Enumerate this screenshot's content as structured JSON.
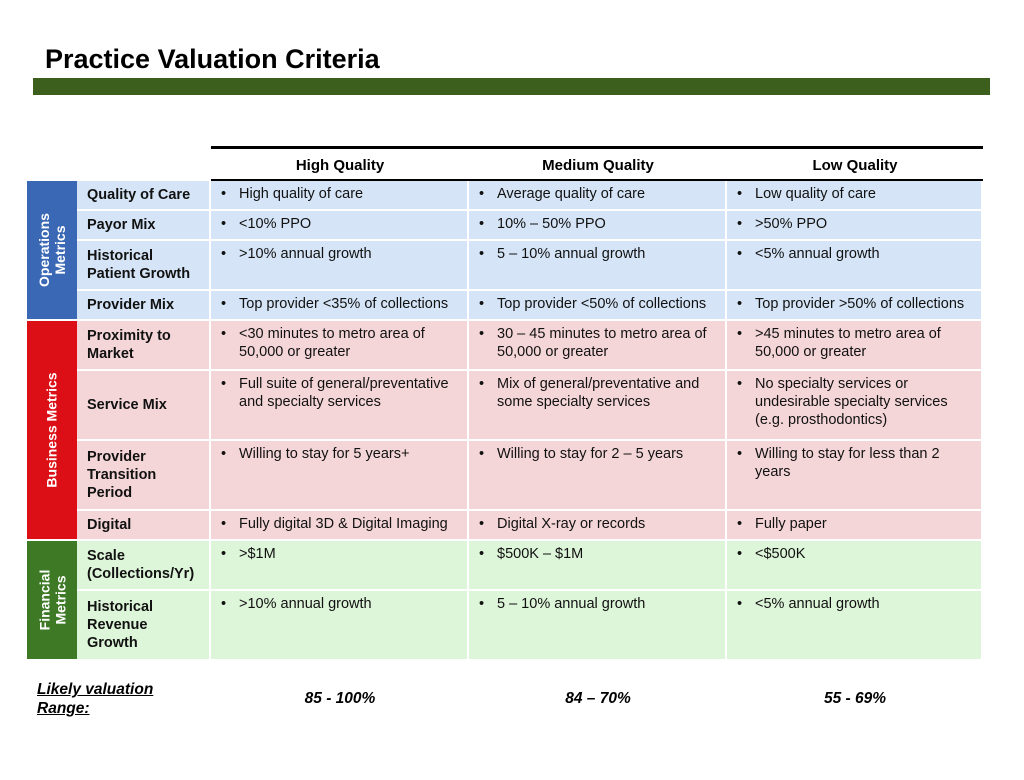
{
  "title": "Practice Valuation Criteria",
  "columns": [
    "High Quality",
    "Medium Quality",
    "Low Quality"
  ],
  "groups": {
    "operations": "Operations Metrics",
    "business": "Business Metrics",
    "financial": "Financial Metrics"
  },
  "colors": {
    "operations": "#3a68b5",
    "business": "#dc0f16",
    "financial": "#3e7a25",
    "bar": "#3d5f1d"
  },
  "rows": [
    {
      "label": "Quality of Care",
      "high": "High quality of care",
      "medium": "Average quality of care",
      "low": "Low quality of care"
    },
    {
      "label": "Payor Mix",
      "high": "<10% PPO",
      "medium": "10% – 50% PPO",
      "low": ">50% PPO"
    },
    {
      "label": "Historical Patient Growth",
      "high": ">10% annual growth",
      "medium": "5 – 10% annual growth",
      "low": "<5% annual growth"
    },
    {
      "label": "Provider Mix",
      "high": "Top provider <35% of collections",
      "medium": "Top provider <50% of collections",
      "low": "Top provider >50% of collections"
    },
    {
      "label": "Proximity to Market",
      "high": "<30 minutes to metro area of 50,000 or greater",
      "medium": "30 – 45 minutes to metro area of 50,000 or greater",
      "low": ">45 minutes to metro area of 50,000 or greater"
    },
    {
      "label": "Service Mix",
      "high": "Full suite of general/preventative and specialty services",
      "medium": "Mix of general/preventative and some specialty services",
      "low": "No specialty services or undesirable specialty services (e.g. prosthodontics)"
    },
    {
      "label": "Provider Transition Period",
      "high": "Willing to stay for 5 years+",
      "medium": "Willing to stay for 2 – 5 years",
      "low": "Willing to stay for less than 2 years"
    },
    {
      "label": "Digital",
      "high": "Fully digital 3D & Digital Imaging",
      "medium": "Digital X-ray or records",
      "low": "Fully paper"
    },
    {
      "label": "Scale (Collections/Yr)",
      "high": ">$1M",
      "medium": "$500K – $1M",
      "low": "<$500K"
    },
    {
      "label": "Historical Revenue Growth",
      "high": ">10% annual growth",
      "medium": "5 – 10% annual growth",
      "low": "<5% annual growth"
    }
  ],
  "footer": {
    "label": "Likely valuation Range:",
    "high": "85 - 100%",
    "medium": "84 – 70%",
    "low": "55 - 69%"
  }
}
